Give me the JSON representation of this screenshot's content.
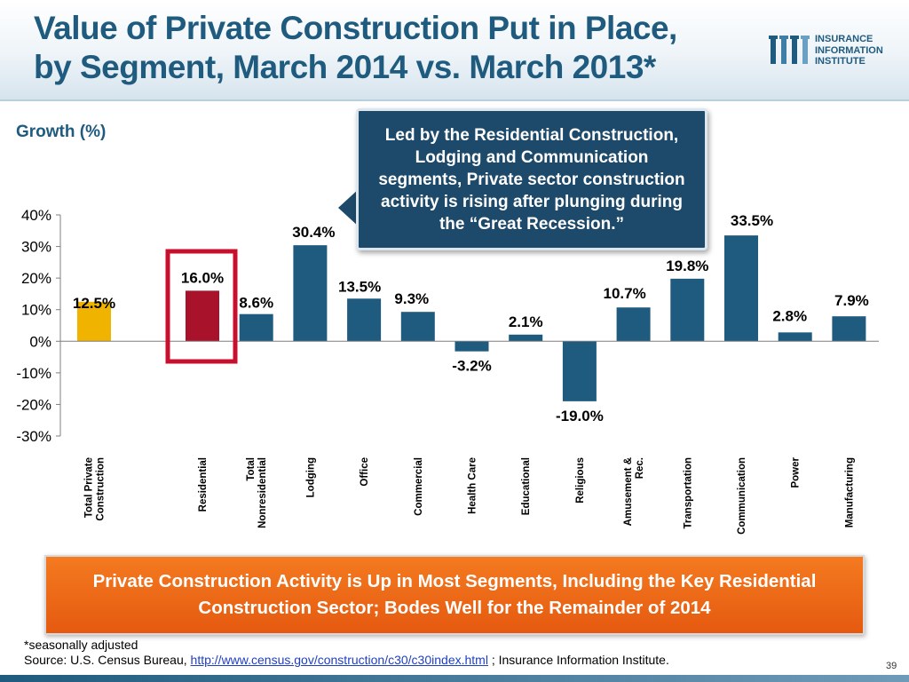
{
  "slide": {
    "title_line1": "Value of Private Construction Put in Place,",
    "title_line2": "by Segment,  March 2014 vs. March 2013*",
    "logo_lines": [
      "INSURANCE",
      "INFORMATION",
      "INSTITUTE"
    ],
    "callout": "Led by the Residential Construction, Lodging and Communication segments, Private sector construction activity is rising after plunging during the “Great Recession.”",
    "banner": "Private Construction Activity is Up in Most Segments, Including the Key Residential Construction Sector; Bodes Well for the Remainder of 2014",
    "footnote_line1": "*seasonally adjusted",
    "source_prefix": "Source: U.S. Census Bureau, ",
    "source_link": "http://www.census.gov/construction/c30/c30index.html",
    "source_suffix": " ; Insurance Information Institute.",
    "page_number": "39",
    "colors": {
      "title": "#1f5b7e",
      "bar_default": "#1f5b7e",
      "bar_total": "#f0b400",
      "bar_residential": "#a8122a",
      "highlight_box": "#c8102e",
      "banner": "#ec6a17",
      "callout": "#1d4a6a"
    }
  },
  "chart_data": {
    "type": "bar",
    "ylabel": "Growth (%)",
    "ylim": [
      -30,
      40
    ],
    "yticks": [
      40,
      30,
      20,
      10,
      0,
      -10,
      -20,
      -30
    ],
    "ytick_labels": [
      "40%",
      "30%",
      "20%",
      "10%",
      "0%",
      "-10%",
      "-20%",
      "-30%"
    ],
    "categories": [
      "Total Private Construction",
      "Residential",
      "Total Nonresidential",
      "Lodging",
      "Office",
      "Commercial",
      "Health Care",
      "Educational",
      "Religious",
      "Amusement & Rec.",
      "Transportation",
      "Communication",
      "Power",
      "Manufacturing"
    ],
    "category_label_lines": [
      [
        "Total Private",
        "Construction"
      ],
      [
        "Residential"
      ],
      [
        "Total",
        "Nonresidential"
      ],
      [
        "Lodging"
      ],
      [
        "Office"
      ],
      [
        "Commercial"
      ],
      [
        "Health Care"
      ],
      [
        "Educational"
      ],
      [
        "Religious"
      ],
      [
        "Amusement &",
        "Rec."
      ],
      [
        "Transportation"
      ],
      [
        "Communication"
      ],
      [
        "Power"
      ],
      [
        "Manufacturing"
      ]
    ],
    "values": [
      12.5,
      16.0,
      8.6,
      30.4,
      13.5,
      9.3,
      -3.2,
      2.1,
      -19.0,
      10.7,
      19.8,
      33.5,
      2.8,
      7.9
    ],
    "value_labels": [
      "12.5%",
      "16.0%",
      "8.6%",
      "30.4%",
      "13.5%",
      "9.3%",
      "-3.2%",
      "2.1%",
      "-19.0%",
      "10.7%",
      "19.8%",
      "33.5%",
      "2.8%",
      "7.9%"
    ],
    "highlighted_category": "Residential",
    "legend": "none",
    "grid": false
  }
}
